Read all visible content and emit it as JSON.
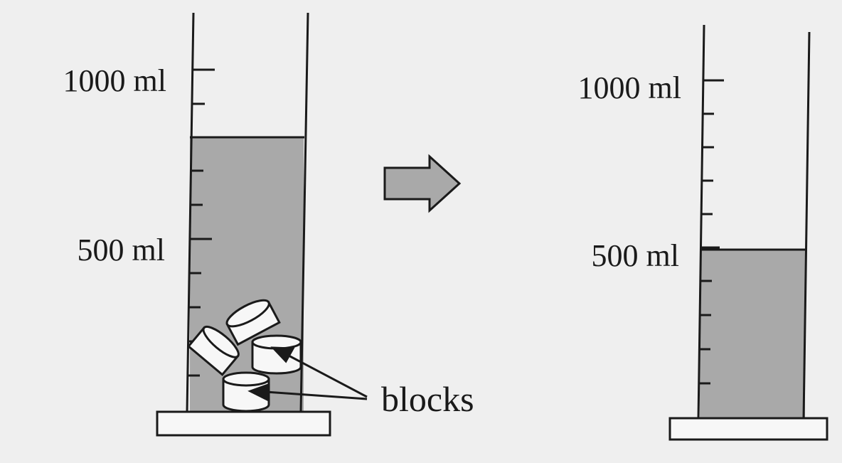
{
  "colors": {
    "background": "#efefef",
    "water": "#a9a9a9",
    "outline": "#1a1a1a",
    "block_fill": "#f7f7f7"
  },
  "left_cylinder": {
    "label_1000": "1000 ml",
    "label_500": "500 ml",
    "water_level_ml": 800,
    "contains": "blocks"
  },
  "arrow": {
    "icon": "right-arrow-icon"
  },
  "right_cylinder": {
    "label_1000": "1000 ml",
    "label_500": "500 ml",
    "water_level_ml": 500
  },
  "callout": {
    "label": "blocks"
  }
}
